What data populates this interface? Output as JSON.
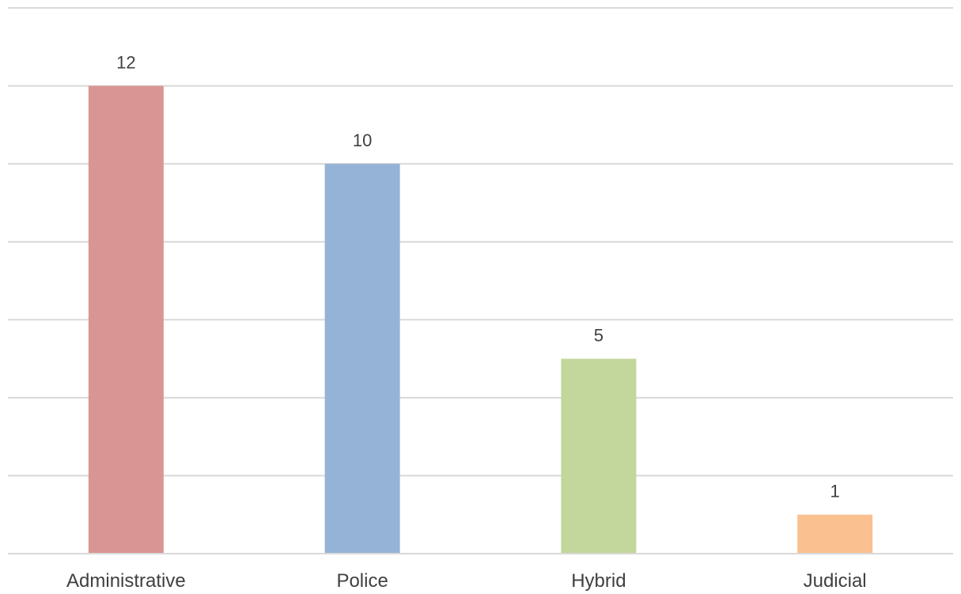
{
  "chart_data": {
    "type": "bar",
    "categories": [
      "Administrative",
      "Police",
      "Hybrid",
      "Judicial"
    ],
    "values": [
      12,
      10,
      5,
      1
    ],
    "colors": [
      "#d99594",
      "#95b3d7",
      "#c3d69b",
      "#fac090"
    ],
    "ylim": [
      0,
      14
    ],
    "grid_step": 2,
    "grid": true,
    "data_labels": true,
    "title": "",
    "xlabel": "",
    "ylabel": ""
  }
}
